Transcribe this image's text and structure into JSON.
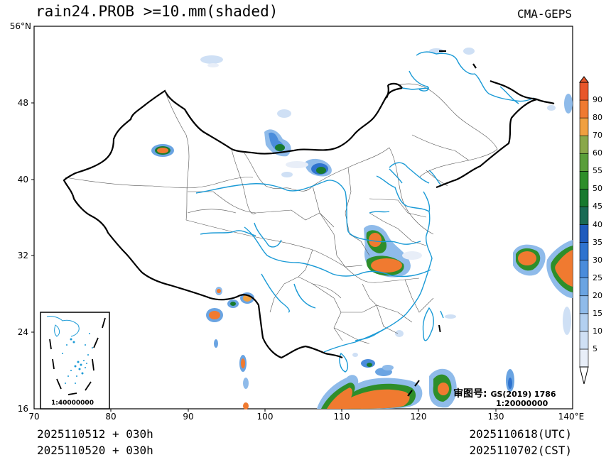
{
  "title": "rain24.PROB >=10.mm(shaded)",
  "model": "CMA-GEPS",
  "footer": {
    "left_line1": "2025110512 + 030h",
    "left_line2": "2025110520 + 030h",
    "right_line1": "2025110618(UTC)",
    "right_line2": "2025110702(CST)"
  },
  "axes": {
    "y_ticks": [
      "56°N",
      "48",
      "40",
      "32",
      "24",
      "16"
    ],
    "x_ticks": [
      "70",
      "80",
      "90",
      "100",
      "110",
      "120",
      "130",
      "140°E"
    ],
    "lon_range": [
      70,
      140
    ],
    "lat_range": [
      16,
      56
    ]
  },
  "approval": {
    "label": "审图号:",
    "code": "GS(2019) 1786",
    "scale": "1:20000000"
  },
  "inset": {
    "scale": "1:40000000"
  },
  "colorbar": {
    "levels": [
      "5",
      "10",
      "15",
      "20",
      "25",
      "30",
      "35",
      "40",
      "45",
      "50",
      "55",
      "60",
      "70",
      "80",
      "90"
    ],
    "colors": [
      "#e8eef8",
      "#cfe0f5",
      "#b3d0f0",
      "#8fbbea",
      "#6aa4e2",
      "#4a8cdb",
      "#2f73cf",
      "#1f5bbd",
      "#1a6a54",
      "#187a2e",
      "#2e8e2a",
      "#5a9e3a",
      "#8aa84a",
      "#f0a040",
      "#f07a30",
      "#e8562a"
    ]
  }
}
